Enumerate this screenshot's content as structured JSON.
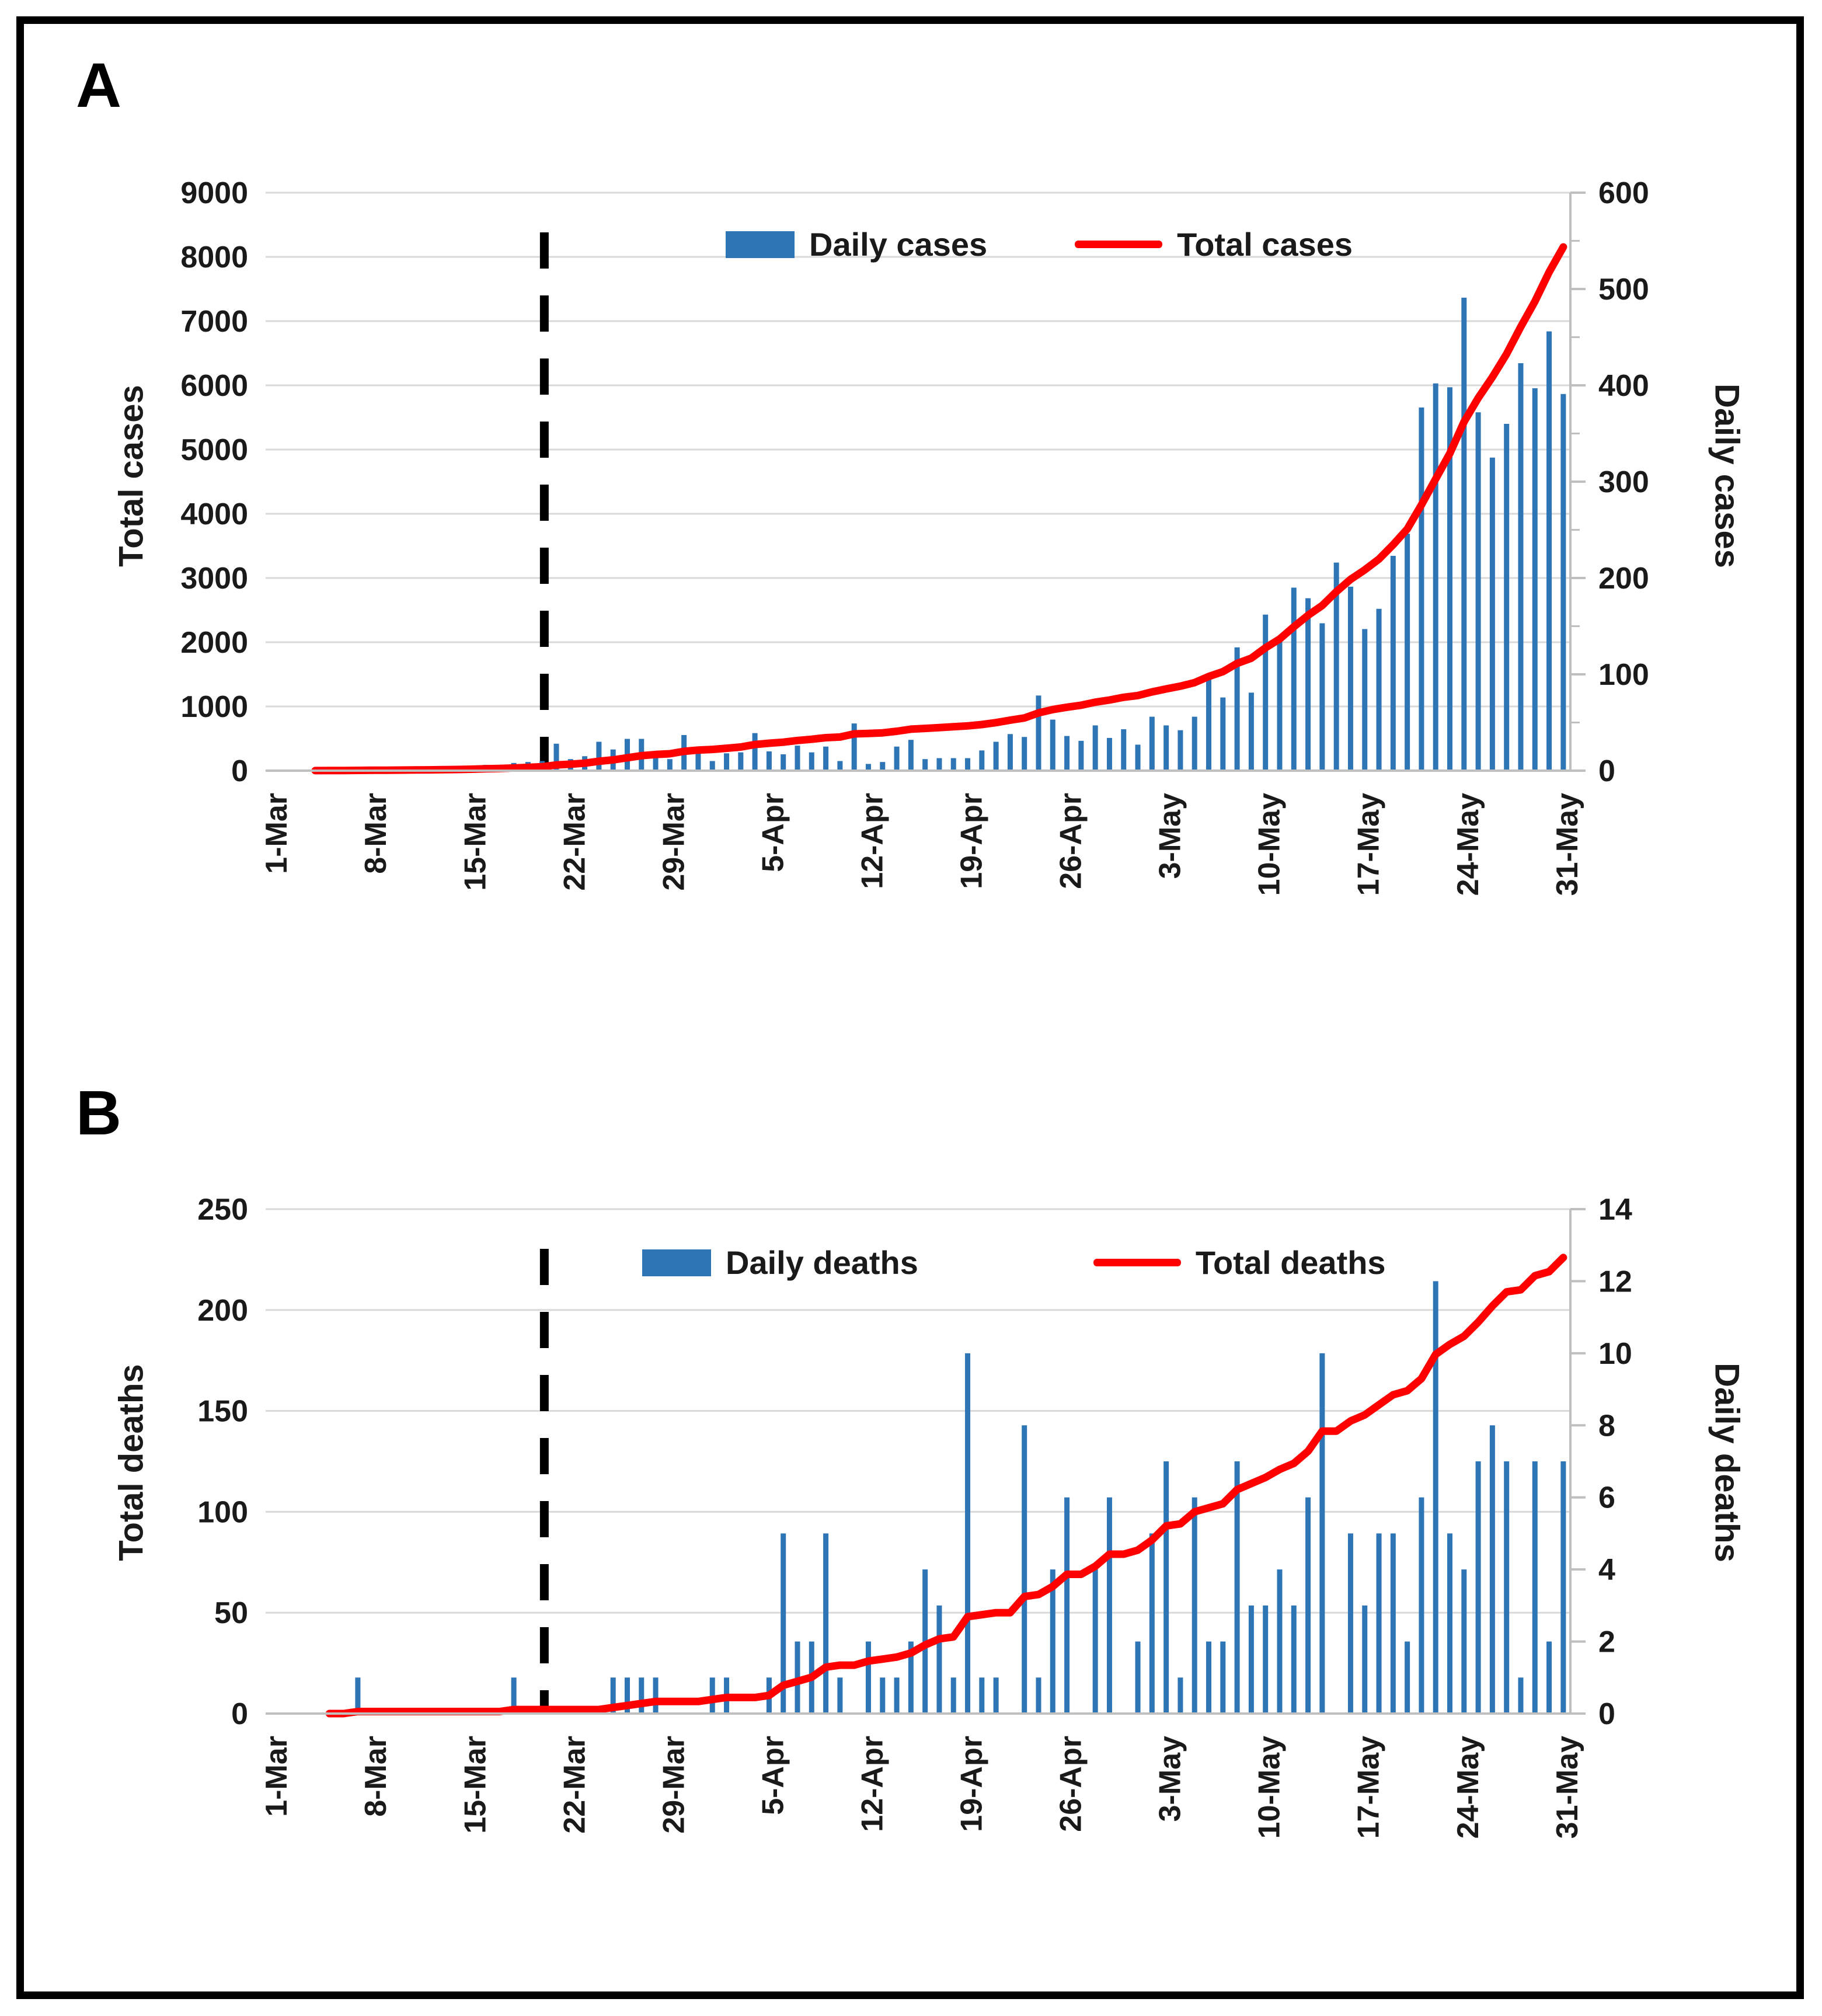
{
  "figure": {
    "panel_a_letter": "A",
    "panel_b_letter": "B"
  },
  "colors": {
    "bar_blue": "#2E75B6",
    "line_red": "#FF0000",
    "grid": "#D9D9D9",
    "axis": "#BFBFBF",
    "dashed": "#000000",
    "text": "#1a1a1a"
  },
  "chart_data": [
    {
      "type": "bar",
      "panel": "A",
      "days": 92,
      "x_tick_labels": [
        "1-Mar",
        "8-Mar",
        "15-Mar",
        "22-Mar",
        "29-Mar",
        "5-Apr",
        "12-Apr",
        "19-Apr",
        "26-Apr",
        "3-May",
        "10-May",
        "17-May",
        "24-May",
        "31-May"
      ],
      "left_axis": {
        "title": "Total cases",
        "min": 0,
        "max": 9000,
        "tick_labels": [
          "0",
          "1000",
          "2000",
          "3000",
          "4000",
          "5000",
          "6000",
          "7000",
          "8000",
          "9000"
        ]
      },
      "right_axis": {
        "title": "Daily cases",
        "min": 0,
        "max": 600,
        "tick_labels": [
          "0",
          "100",
          "200",
          "300",
          "400",
          "500",
          "600"
        ],
        "minor_ticks": true
      },
      "legend_position": "top-center",
      "grid": true,
      "annotations": {
        "dashed_line_day": 19.65
      },
      "series": [
        {
          "name": "Daily cases",
          "type": "bar",
          "axis": "right",
          "color": "#2E75B6",
          "values": [
            0,
            0,
            0,
            1,
            1,
            1,
            2,
            1,
            1,
            2,
            2,
            2,
            2,
            3,
            5,
            6,
            5,
            8,
            9,
            10,
            28,
            12,
            15,
            30,
            22,
            33,
            33,
            18,
            12,
            37,
            20,
            10,
            18,
            19,
            39,
            20,
            17,
            26,
            19,
            25,
            10,
            49,
            7,
            9,
            25,
            32,
            12,
            13,
            13,
            13,
            21,
            30,
            38,
            35,
            78,
            53,
            36,
            31,
            47,
            34,
            43,
            27,
            56,
            47,
            42,
            56,
            95,
            76,
            128,
            81,
            162,
            137,
            190,
            179,
            153,
            216,
            191,
            147,
            168,
            223,
            246,
            377,
            402,
            398,
            491,
            372,
            325,
            360,
            423,
            397,
            456,
            391
          ]
        },
        {
          "name": "Total cases",
          "type": "line",
          "axis": "left",
          "color": "#FF0000",
          "start_index": 3,
          "values": [
            0,
            0,
            0,
            1,
            2,
            3,
            5,
            6,
            7,
            9,
            11,
            13,
            15,
            18,
            23,
            29,
            34,
            42,
            51,
            61,
            89,
            101,
            116,
            146,
            168,
            201,
            234,
            252,
            264,
            301,
            321,
            331,
            349,
            368,
            407,
            427,
            444,
            470,
            489,
            514,
            524,
            573,
            580,
            589,
            614,
            646,
            658,
            671,
            684,
            697,
            718,
            748,
            786,
            821,
            899,
            952,
            988,
            1019,
            1066,
            1100,
            1143,
            1170,
            1226,
            1273,
            1315,
            1371,
            1466,
            1542,
            1670,
            1751,
            1913,
            2050,
            2240,
            2419,
            2572,
            2788,
            2979,
            3126,
            3294,
            3517,
            3763,
            4140,
            4542,
            4940,
            5431,
            5803,
            6128,
            6488,
            6911,
            7308,
            7764,
            8155
          ]
        }
      ]
    },
    {
      "type": "bar",
      "panel": "B",
      "days": 92,
      "x_tick_labels": [
        "1-Mar",
        "8-Mar",
        "15-Mar",
        "22-Mar",
        "29-Mar",
        "5-Apr",
        "12-Apr",
        "19-Apr",
        "26-Apr",
        "3-May",
        "10-May",
        "17-May",
        "24-May",
        "31-May"
      ],
      "left_axis": {
        "title": "Total deaths",
        "min": 0,
        "max": 250,
        "tick_labels": [
          "0",
          "50",
          "100",
          "150",
          "200",
          "250"
        ]
      },
      "right_axis": {
        "title": "Daily deaths",
        "min": 0,
        "max": 14,
        "tick_labels": [
          "0",
          "2",
          "4",
          "6",
          "8",
          "10",
          "12",
          "14"
        ],
        "minor_ticks": false
      },
      "legend_position": "top-center",
      "grid": true,
      "annotations": {
        "dashed_line_day": 19.65
      },
      "series": [
        {
          "name": "Daily deaths",
          "type": "bar",
          "axis": "right",
          "color": "#2E75B6",
          "values": [
            0,
            0,
            0,
            0,
            0,
            0,
            1,
            0,
            0,
            0,
            0,
            0,
            0,
            0,
            0,
            0,
            0,
            1,
            0,
            0,
            0,
            0,
            0,
            0,
            1,
            1,
            1,
            1,
            0,
            0,
            0,
            1,
            1,
            0,
            0,
            1,
            5,
            2,
            2,
            5,
            1,
            0,
            2,
            1,
            1,
            2,
            4,
            3,
            1,
            10,
            1,
            1,
            0,
            8,
            1,
            4,
            6,
            0,
            4,
            6,
            0,
            2,
            5,
            7,
            1,
            6,
            2,
            2,
            7,
            3,
            3,
            4,
            3,
            6,
            10,
            0,
            5,
            3,
            5,
            5,
            2,
            6,
            12,
            5,
            4,
            7,
            8,
            7,
            1,
            7,
            2,
            7
          ]
        },
        {
          "name": "Total deaths",
          "type": "line",
          "axis": "left",
          "color": "#FF0000",
          "start_index": 4,
          "values": [
            0,
            0,
            0,
            0,
            0,
            0,
            1,
            1,
            1,
            1,
            1,
            1,
            1,
            1,
            1,
            1,
            1,
            2,
            2,
            2,
            2,
            2,
            2,
            2,
            3,
            4,
            5,
            6,
            6,
            6,
            6,
            7,
            8,
            8,
            8,
            9,
            14,
            16,
            18,
            23,
            24,
            24,
            26,
            27,
            28,
            30,
            34,
            37,
            38,
            48,
            49,
            50,
            50,
            58,
            59,
            63,
            69,
            69,
            73,
            79,
            79,
            81,
            86,
            93,
            94,
            100,
            102,
            104,
            111,
            114,
            117,
            121,
            124,
            130,
            140,
            140,
            145,
            148,
            153,
            158,
            160,
            166,
            178,
            183,
            187,
            194,
            202,
            209,
            210,
            217,
            219,
            226
          ]
        }
      ]
    }
  ]
}
